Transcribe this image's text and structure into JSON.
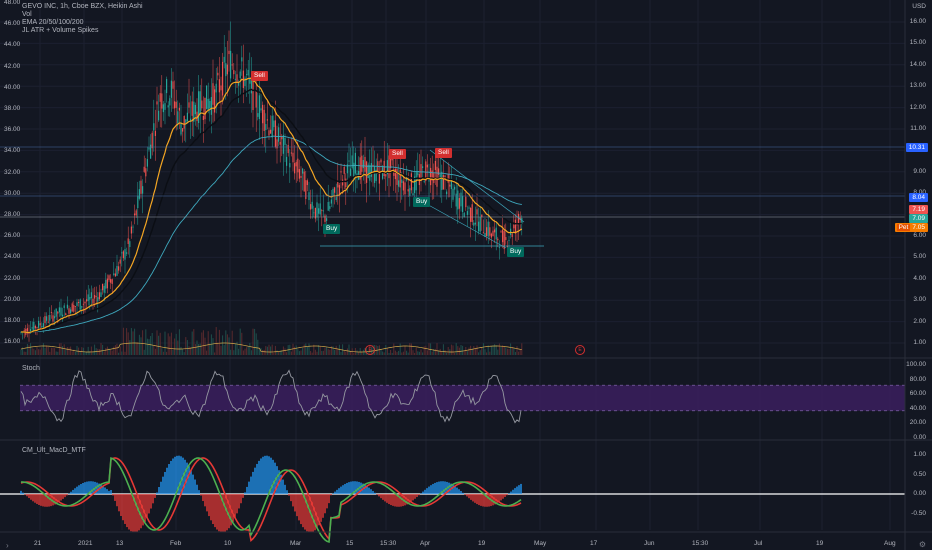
{
  "legend": {
    "symbol": "GEVO INC, 1h, Cboe BZX, Heikin Ashi",
    "vol": "Vol",
    "ema": "EMA 20/50/100/200",
    "jl": "JL ATR + Volume Spikes"
  },
  "panes": {
    "stoch_title": "Stoch",
    "macd_title": "CM_Ult_MacD_MTF"
  },
  "axes": {
    "currency": "USD",
    "left_ticks": [
      "48.00",
      "46.00",
      "44.00",
      "42.00",
      "40.00",
      "38.00",
      "36.00",
      "34.00",
      "32.00",
      "30.00",
      "28.00",
      "26.00",
      "24.00",
      "22.00",
      "20.00",
      "18.00",
      "16.00"
    ],
    "right_ticks": [
      "16.00",
      "15.00",
      "14.00",
      "13.00",
      "12.00",
      "11.00",
      "10.00",
      "9.00",
      "8.00",
      "7.00",
      "6.00",
      "5.00",
      "4.00",
      "3.00",
      "2.00",
      "1.00"
    ],
    "stoch_ticks": [
      "100.00",
      "80.00",
      "60.00",
      "40.00",
      "20.00",
      "0.00"
    ],
    "macd_ticks": [
      "1.00",
      "0.50",
      "0.00",
      "-0.50"
    ],
    "time_ticks": [
      "21",
      "2021",
      "13",
      "Feb",
      "10",
      "Mar",
      "15",
      "15:30",
      "Apr",
      "19",
      "May",
      "17",
      "Jun",
      "15:30",
      "Jul",
      "19",
      "Aug"
    ]
  },
  "price_tags": {
    "t1": "10.31",
    "t2": "8.04",
    "t3": "7.19",
    "t4": "7.09",
    "t5": "7.05",
    "t5_prefix": "Pet"
  },
  "signals": {
    "sell1": "Sell",
    "sell2": "Sell",
    "sell3": "Sell",
    "buy1": "Buy",
    "buy2": "Buy",
    "buy3": "Buy"
  },
  "icons": {
    "eye1": "E",
    "eye2": "E",
    "settings": "gear-icon",
    "corner": "chevron-icon"
  },
  "colors": {
    "background": "#131722",
    "up": "#26a69a",
    "down": "#ef5350",
    "ema_orange": "#f5a623",
    "ema_dark": "#0b0e14",
    "ema_teal": "#3ea8bd",
    "stoch_band": "#3b1f5e",
    "macd_green": "#4caf50",
    "macd_red": "#e53935"
  },
  "chart_data": {
    "type": "line",
    "title": "GEVO INC, 1h, Cboe BZX, Heikin Ashi",
    "x": [
      "Dec 21",
      "2021",
      "Jan 13",
      "Feb",
      "Feb 10",
      "Mar",
      "Mar 15",
      "Apr",
      "Apr 19"
    ],
    "series": [
      {
        "name": "Heikin Ashi (approx close)",
        "values": [
          1.8,
          2.6,
          4.8,
          12.5,
          14.0,
          8.5,
          9.5,
          8.9,
          6.2
        ]
      },
      {
        "name": "EMA 20/50/100/200",
        "values": [
          1.7,
          2.3,
          4.2,
          10.5,
          12.9,
          9.8,
          9.3,
          9.0,
          6.8
        ]
      }
    ],
    "ylim": [
      0.5,
      16.5
    ]
  }
}
